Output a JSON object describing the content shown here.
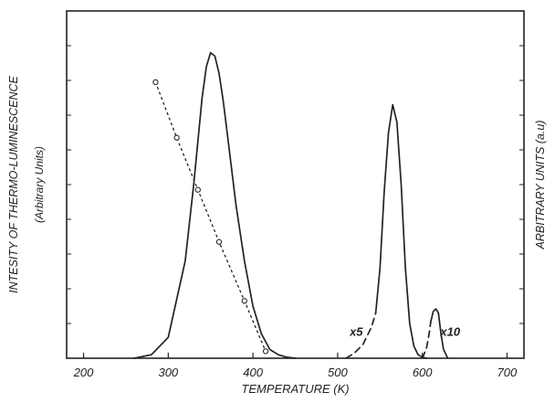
{
  "chart_data": {
    "type": "line",
    "xlabel": "TEMPERATURE (K)",
    "ylabel_left": "INTESITY OF THERMO-LUMINESCENCE",
    "ylabel_left_sub": "(Arbitrary Units)",
    "ylabel_right": "ARBITRARY UNITS (a.u)",
    "xlim": [
      180,
      720
    ],
    "ylim": [
      0,
      10
    ],
    "xticks": [
      200,
      300,
      400,
      500,
      600,
      700
    ],
    "grid": false,
    "series": [
      {
        "style": "solid",
        "x": [
          260,
          280,
          300,
          320,
          330,
          340,
          345,
          350,
          355,
          360,
          365,
          370,
          380,
          390,
          400,
          410,
          420,
          430,
          440,
          450
        ],
        "y": [
          0.0,
          0.1,
          0.6,
          2.8,
          5.0,
          7.5,
          8.4,
          8.8,
          8.7,
          8.2,
          7.4,
          6.4,
          4.4,
          2.8,
          1.5,
          0.7,
          0.25,
          0.1,
          0.03,
          0.0
        ]
      },
      {
        "style": "dashed",
        "x": [
          510,
          520,
          530,
          540,
          545
        ],
        "y": [
          0.0,
          0.15,
          0.4,
          0.9,
          1.3
        ]
      },
      {
        "style": "solid",
        "x": [
          545,
          550,
          555,
          560,
          565,
          570,
          575,
          580,
          585,
          590,
          595,
          600,
          605
        ],
        "y": [
          1.3,
          2.6,
          4.8,
          6.5,
          7.3,
          6.8,
          5.0,
          2.6,
          1.0,
          0.35,
          0.1,
          0.03,
          0.0
        ]
      },
      {
        "style": "dashed",
        "x": [
          600,
          605,
          608,
          610
        ],
        "y": [
          0.0,
          0.3,
          0.7,
          1.05
        ]
      },
      {
        "style": "solid",
        "x": [
          610,
          613,
          616,
          619,
          622,
          625,
          630
        ],
        "y": [
          1.05,
          1.35,
          1.42,
          1.3,
          0.7,
          0.25,
          0.0
        ]
      },
      {
        "style": "dotted-markers",
        "x": [
          285,
          310,
          335,
          360,
          390,
          415
        ],
        "y": [
          7.95,
          6.35,
          4.85,
          3.35,
          1.65,
          0.2
        ]
      }
    ],
    "annotations": [
      {
        "text": "x5",
        "x": 522,
        "y": 0.75
      },
      {
        "text": "x10",
        "x": 633,
        "y": 0.75
      }
    ]
  }
}
